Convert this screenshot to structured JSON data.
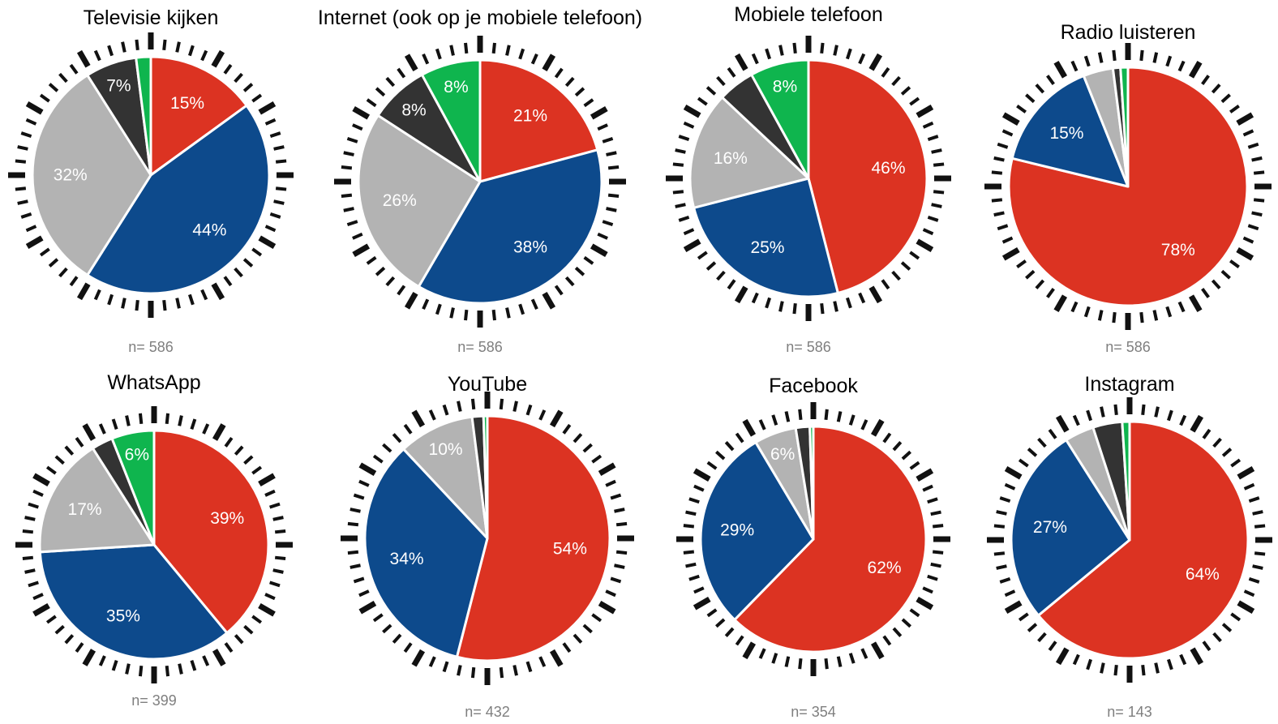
{
  "colors": {
    "red": "#dc3322",
    "blue": "#0d4a8c",
    "gray": "#b3b3b3",
    "dark": "#333333",
    "green": "#0fb54e",
    "n_text": "#7f7f7f",
    "ticks": "#111111"
  },
  "chart_data": [
    {
      "type": "pie",
      "title": "Televisie kijken",
      "n_label": "n= 586",
      "slices": [
        {
          "value": 15,
          "color": "red",
          "label": "15%"
        },
        {
          "value": 44,
          "color": "blue",
          "label": "44%"
        },
        {
          "value": 32,
          "color": "gray",
          "label": "32%"
        },
        {
          "value": 7,
          "color": "dark",
          "label": "7%"
        },
        {
          "value": 2,
          "color": "green",
          "label": ""
        }
      ]
    },
    {
      "type": "pie",
      "title": "Internet (ook op je mobiele telefoon)",
      "n_label": "n= 586",
      "slices": [
        {
          "value": 21,
          "color": "red",
          "label": "21%"
        },
        {
          "value": 38,
          "color": "blue",
          "label": "38%"
        },
        {
          "value": 26,
          "color": "gray",
          "label": "26%"
        },
        {
          "value": 8,
          "color": "dark",
          "label": "8%"
        },
        {
          "value": 8,
          "color": "green",
          "label": "8%"
        }
      ]
    },
    {
      "type": "pie",
      "title": "Mobiele telefoon",
      "n_label": "n= 586",
      "slices": [
        {
          "value": 46,
          "color": "red",
          "label": "46%"
        },
        {
          "value": 25,
          "color": "blue",
          "label": "25%"
        },
        {
          "value": 16,
          "color": "gray",
          "label": "16%"
        },
        {
          "value": 5,
          "color": "dark",
          "label": ""
        },
        {
          "value": 8,
          "color": "green",
          "label": "8%"
        }
      ]
    },
    {
      "type": "pie",
      "title": "Radio luisteren",
      "n_label": "n= 586",
      "slices": [
        {
          "value": 78,
          "color": "red",
          "label": "78%"
        },
        {
          "value": 15,
          "color": "blue",
          "label": "15%"
        },
        {
          "value": 4,
          "color": "gray",
          "label": ""
        },
        {
          "value": 1,
          "color": "dark",
          "label": ""
        },
        {
          "value": 1,
          "color": "green",
          "label": ""
        }
      ]
    },
    {
      "type": "pie",
      "title": "WhatsApp",
      "n_label": "n= 399",
      "slices": [
        {
          "value": 39,
          "color": "red",
          "label": "39%"
        },
        {
          "value": 35,
          "color": "blue",
          "label": "35%"
        },
        {
          "value": 17,
          "color": "gray",
          "label": "17%"
        },
        {
          "value": 3,
          "color": "dark",
          "label": ""
        },
        {
          "value": 6,
          "color": "green",
          "label": "6%"
        }
      ]
    },
    {
      "type": "pie",
      "title": "YouTube",
      "n_label": "n= 432",
      "slices": [
        {
          "value": 54,
          "color": "red",
          "label": "54%"
        },
        {
          "value": 34,
          "color": "blue",
          "label": "34%"
        },
        {
          "value": 10,
          "color": "gray",
          "label": "10%"
        },
        {
          "value": 1.5,
          "color": "dark",
          "label": ""
        },
        {
          "value": 0.5,
          "color": "green",
          "label": ""
        }
      ]
    },
    {
      "type": "pie",
      "title": "Facebook",
      "n_label": "n= 354",
      "slices": [
        {
          "value": 62,
          "color": "red",
          "label": "62%"
        },
        {
          "value": 29,
          "color": "blue",
          "label": "29%"
        },
        {
          "value": 6,
          "color": "gray",
          "label": "6%"
        },
        {
          "value": 2,
          "color": "dark",
          "label": ""
        },
        {
          "value": 0.5,
          "color": "green",
          "label": ""
        }
      ]
    },
    {
      "type": "pie",
      "title": "Instagram",
      "n_label": "n= 143",
      "slices": [
        {
          "value": 64,
          "color": "red",
          "label": "64%"
        },
        {
          "value": 27,
          "color": "blue",
          "label": "27%"
        },
        {
          "value": 4,
          "color": "gray",
          "label": ""
        },
        {
          "value": 4,
          "color": "dark",
          "label": ""
        },
        {
          "value": 1,
          "color": "green",
          "label": ""
        }
      ]
    }
  ]
}
